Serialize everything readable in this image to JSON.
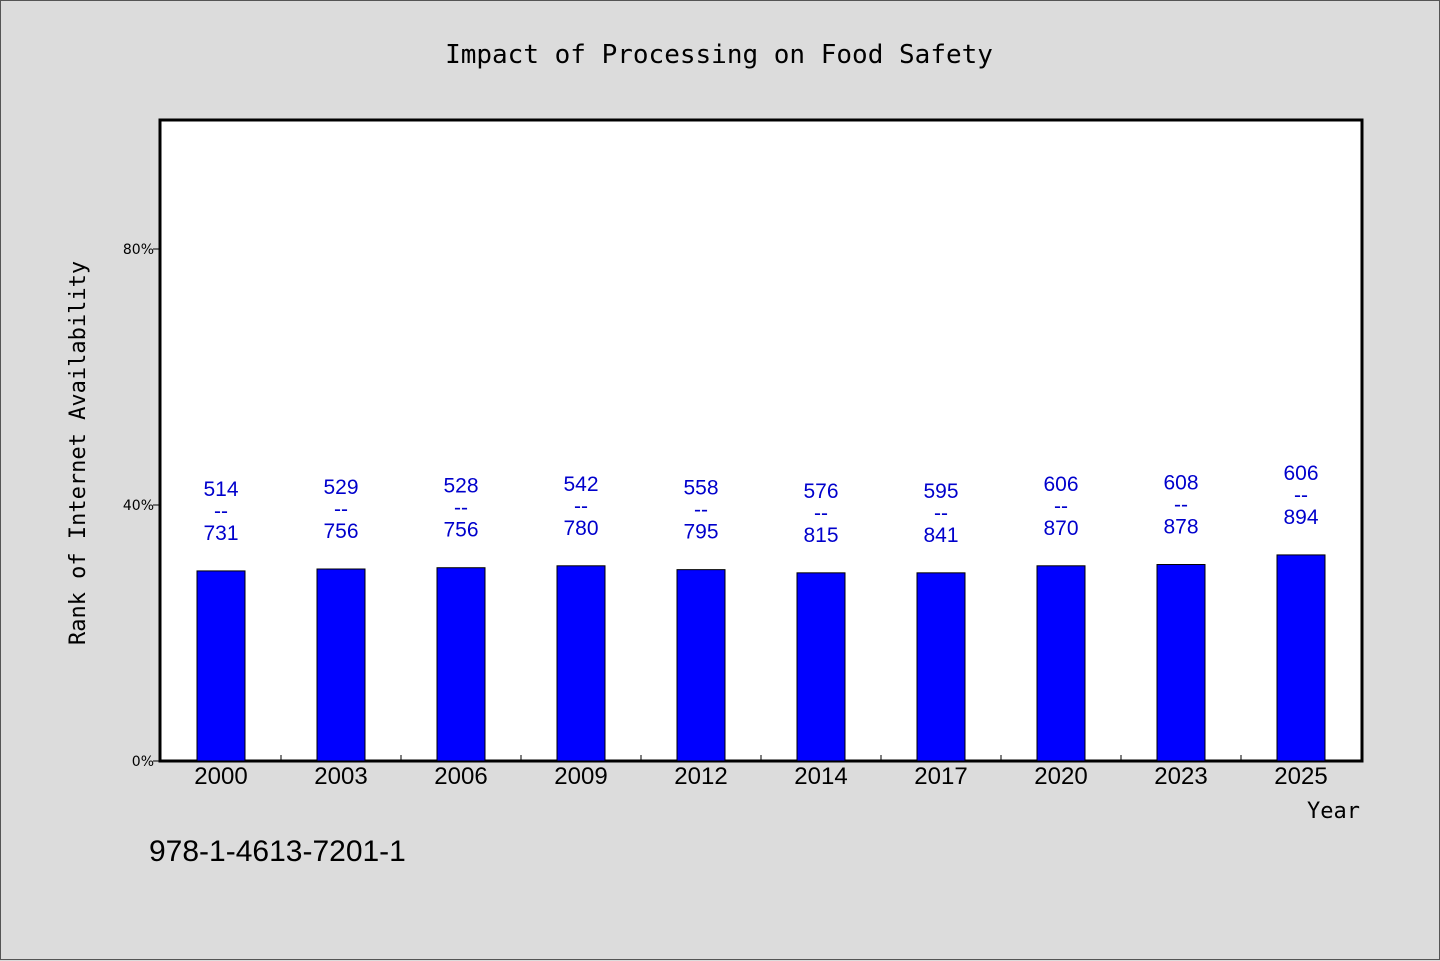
{
  "chart_data": {
    "type": "bar",
    "title": "Impact of Processing on Food Safety",
    "xlabel": "Year",
    "ylabel": "Rank of Internet Availability",
    "categories": [
      "2000",
      "2003",
      "2006",
      "2009",
      "2012",
      "2014",
      "2017",
      "2020",
      "2023",
      "2025"
    ],
    "values": [
      0.297,
      0.3,
      0.302,
      0.305,
      0.299,
      0.294,
      0.294,
      0.305,
      0.307,
      0.322
    ],
    "data_labels": [
      [
        "514",
        "--",
        "731"
      ],
      [
        "529",
        "--",
        "756"
      ],
      [
        "528",
        "--",
        "756"
      ],
      [
        "542",
        "--",
        "780"
      ],
      [
        "558",
        "--",
        "795"
      ],
      [
        "576",
        "--",
        "815"
      ],
      [
        "595",
        "--",
        "841"
      ],
      [
        "606",
        "--",
        "870"
      ],
      [
        "608",
        "--",
        "878"
      ],
      [
        "606",
        "--",
        "894"
      ]
    ],
    "yticks": [
      {
        "value": 0,
        "label": "0%"
      },
      {
        "value": 0.4,
        "label": "40%"
      },
      {
        "value": 0.8,
        "label": "80%"
      }
    ],
    "ylim": [
      0,
      1.0
    ],
    "grid": false,
    "legend": "none",
    "bar_color": "#0000ff",
    "label_color": "#0000cc",
    "plot_background": "#ffffff",
    "page_background": "#dcdcdc"
  },
  "footer": {
    "isbn": "978-1-4613-7201-1"
  }
}
